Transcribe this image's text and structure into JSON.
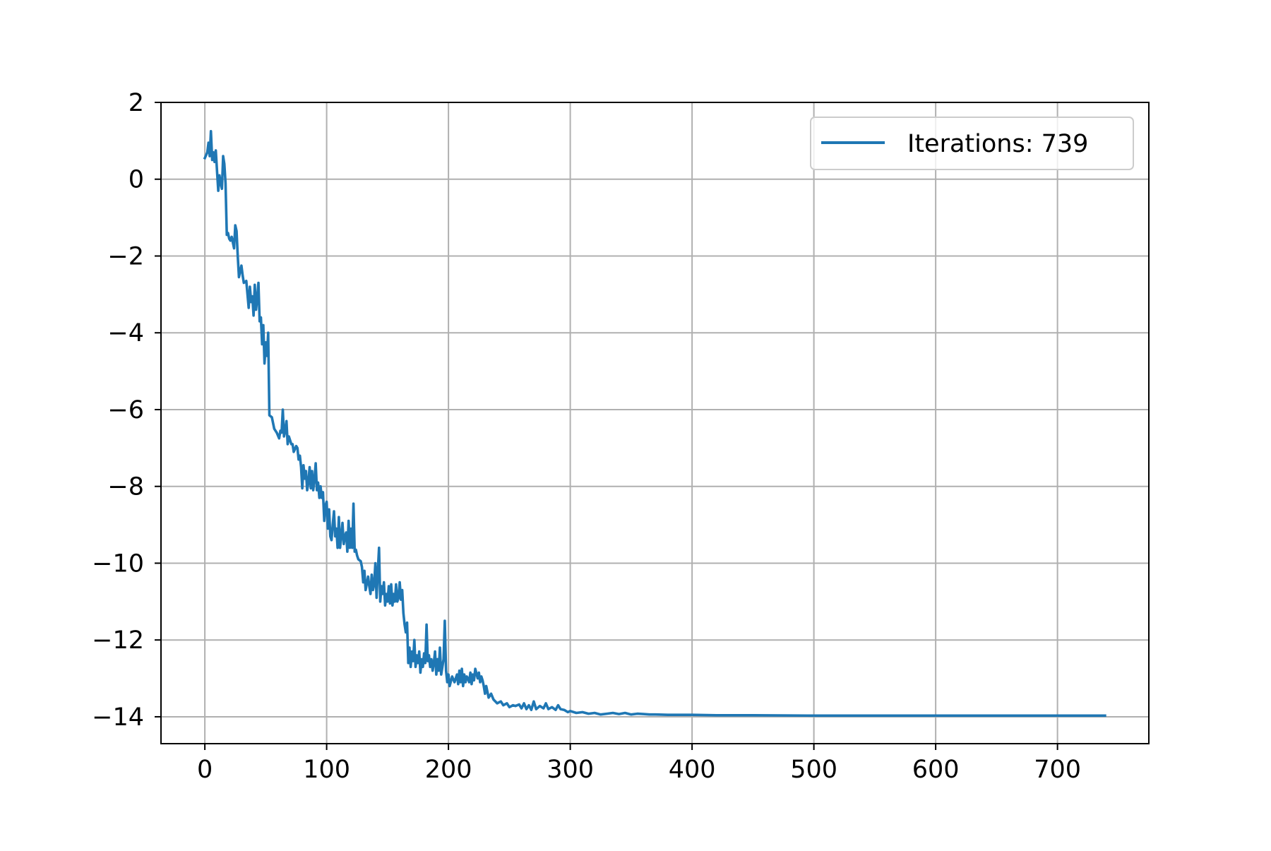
{
  "chart_data": {
    "type": "line",
    "title": "",
    "xlabel": "",
    "ylabel": "",
    "xlim": [
      -36,
      775
    ],
    "ylim": [
      -14.7,
      2.0
    ],
    "x_ticks": [
      0,
      100,
      200,
      300,
      400,
      500,
      600,
      700
    ],
    "y_ticks": [
      2,
      0,
      -2,
      -4,
      -6,
      -8,
      -10,
      -12,
      -14
    ],
    "x_tick_labels": [
      "0",
      "100",
      "200",
      "300",
      "400",
      "500",
      "600",
      "700"
    ],
    "y_tick_labels": [
      "2",
      "0",
      "−2",
      "−4",
      "−6",
      "−8",
      "−10",
      "−12",
      "−14"
    ],
    "grid": true,
    "legend_position": "top-right",
    "series": [
      {
        "name": "Iterations: 739",
        "color": "#1f77b4",
        "points": [
          [
            0,
            0.55
          ],
          [
            2,
            0.7
          ],
          [
            3,
            0.95
          ],
          [
            4,
            0.6
          ],
          [
            5,
            1.25
          ],
          [
            6,
            0.5
          ],
          [
            7,
            0.7
          ],
          [
            8,
            0.45
          ],
          [
            9,
            0.75
          ],
          [
            10,
            0.2
          ],
          [
            11,
            -0.3
          ],
          [
            12,
            0.1
          ],
          [
            13,
            -0.1
          ],
          [
            14,
            -0.25
          ],
          [
            15,
            0.6
          ],
          [
            16,
            0.4
          ],
          [
            17,
            -0.1
          ],
          [
            18,
            -1.45
          ],
          [
            19,
            -1.4
          ],
          [
            20,
            -1.55
          ],
          [
            21,
            -1.6
          ],
          [
            22,
            -1.5
          ],
          [
            24,
            -1.8
          ],
          [
            25,
            -1.2
          ],
          [
            26,
            -1.35
          ],
          [
            27,
            -2.0
          ],
          [
            28,
            -2.55
          ],
          [
            30,
            -2.25
          ],
          [
            31,
            -2.5
          ],
          [
            32,
            -2.7
          ],
          [
            34,
            -2.65
          ],
          [
            35,
            -3.0
          ],
          [
            36,
            -3.35
          ],
          [
            37,
            -2.8
          ],
          [
            38,
            -3.2
          ],
          [
            39,
            -3.05
          ],
          [
            40,
            -3.55
          ],
          [
            41,
            -2.75
          ],
          [
            42,
            -3.4
          ],
          [
            43,
            -3.1
          ],
          [
            44,
            -2.7
          ],
          [
            45,
            -3.7
          ],
          [
            46,
            -3.6
          ],
          [
            47,
            -4.3
          ],
          [
            48,
            -3.8
          ],
          [
            49,
            -4.8
          ],
          [
            50,
            -4.25
          ],
          [
            51,
            -4.6
          ],
          [
            52,
            -4.0
          ],
          [
            53,
            -6.15
          ],
          [
            55,
            -6.2
          ],
          [
            57,
            -6.5
          ],
          [
            59,
            -6.6
          ],
          [
            61,
            -6.75
          ],
          [
            62,
            -6.55
          ],
          [
            63,
            -6.6
          ],
          [
            64,
            -6.0
          ],
          [
            65,
            -6.7
          ],
          [
            66,
            -6.55
          ],
          [
            67,
            -6.3
          ],
          [
            68,
            -6.9
          ],
          [
            69,
            -6.7
          ],
          [
            71,
            -6.9
          ],
          [
            72,
            -6.9
          ],
          [
            73,
            -7.1
          ],
          [
            75,
            -6.95
          ],
          [
            76,
            -7.0
          ],
          [
            77,
            -7.3
          ],
          [
            78,
            -7.2
          ],
          [
            79,
            -7.5
          ],
          [
            80,
            -8.05
          ],
          [
            81,
            -7.45
          ],
          [
            82,
            -7.8
          ],
          [
            83,
            -7.6
          ],
          [
            84,
            -8.1
          ],
          [
            85,
            -7.9
          ],
          [
            86,
            -7.5
          ],
          [
            87,
            -8.05
          ],
          [
            88,
            -7.6
          ],
          [
            89,
            -8.1
          ],
          [
            90,
            -7.8
          ],
          [
            91,
            -7.4
          ],
          [
            92,
            -8.1
          ],
          [
            93,
            -7.9
          ],
          [
            94,
            -8.3
          ],
          [
            95,
            -8.0
          ],
          [
            96,
            -8.3
          ],
          [
            97,
            -8.15
          ],
          [
            98,
            -8.9
          ],
          [
            99,
            -8.5
          ],
          [
            100,
            -8.4
          ],
          [
            101,
            -9.1
          ],
          [
            102,
            -8.6
          ],
          [
            103,
            -9.3
          ],
          [
            104,
            -9.4
          ],
          [
            105,
            -9.0
          ],
          [
            106,
            -8.65
          ],
          [
            107,
            -9.3
          ],
          [
            108,
            -9.1
          ],
          [
            109,
            -9.6
          ],
          [
            110,
            -8.8
          ],
          [
            111,
            -9.6
          ],
          [
            112,
            -9.3
          ],
          [
            113,
            -8.95
          ],
          [
            114,
            -9.5
          ],
          [
            115,
            -9.3
          ],
          [
            116,
            -9.2
          ],
          [
            117,
            -9.7
          ],
          [
            118,
            -8.9
          ],
          [
            119,
            -9.6
          ],
          [
            120,
            -9.1
          ],
          [
            121,
            -9.6
          ],
          [
            122,
            -8.45
          ],
          [
            123,
            -9.7
          ],
          [
            124,
            -9.65
          ],
          [
            125,
            -9.8
          ],
          [
            126,
            -9.9
          ],
          [
            128,
            -9.95
          ],
          [
            129,
            -10.1
          ],
          [
            130,
            -10.5
          ],
          [
            131,
            -10.2
          ],
          [
            132,
            -10.7
          ],
          [
            134,
            -10.35
          ],
          [
            135,
            -10.6
          ],
          [
            136,
            -10.8
          ],
          [
            137,
            -10.3
          ],
          [
            138,
            -10.7
          ],
          [
            139,
            -10.55
          ],
          [
            140,
            -10.0
          ],
          [
            141,
            -10.9
          ],
          [
            142,
            -10.2
          ],
          [
            143,
            -9.6
          ],
          [
            144,
            -11.0
          ],
          [
            145,
            -10.6
          ],
          [
            146,
            -10.8
          ],
          [
            147,
            -10.5
          ],
          [
            148,
            -11.1
          ],
          [
            149,
            -10.8
          ],
          [
            150,
            -11.0
          ],
          [
            151,
            -10.6
          ],
          [
            152,
            -11.05
          ],
          [
            153,
            -10.55
          ],
          [
            154,
            -11.1
          ],
          [
            155,
            -10.8
          ],
          [
            156,
            -11.0
          ],
          [
            157,
            -10.55
          ],
          [
            158,
            -11.0
          ],
          [
            159,
            -10.9
          ],
          [
            160,
            -10.5
          ],
          [
            161,
            -10.95
          ],
          [
            162,
            -10.7
          ],
          [
            163,
            -11.3
          ],
          [
            164,
            -11.6
          ],
          [
            165,
            -11.8
          ],
          [
            166,
            -11.55
          ],
          [
            167,
            -12.6
          ],
          [
            168,
            -12.2
          ],
          [
            169,
            -12.7
          ],
          [
            170,
            -12.3
          ],
          [
            171,
            -12.55
          ],
          [
            172,
            -12.0
          ],
          [
            173,
            -12.7
          ],
          [
            174,
            -12.4
          ],
          [
            175,
            -12.6
          ],
          [
            176,
            -12.3
          ],
          [
            177,
            -12.85
          ],
          [
            178,
            -12.5
          ],
          [
            179,
            -12.7
          ],
          [
            180,
            -12.35
          ],
          [
            181,
            -12.6
          ],
          [
            182,
            -11.6
          ],
          [
            183,
            -12.55
          ],
          [
            184,
            -12.4
          ],
          [
            185,
            -12.7
          ],
          [
            186,
            -12.5
          ],
          [
            187,
            -12.8
          ],
          [
            188,
            -12.6
          ],
          [
            189,
            -12.3
          ],
          [
            190,
            -12.9
          ],
          [
            191,
            -12.5
          ],
          [
            192,
            -12.8
          ],
          [
            193,
            -12.2
          ],
          [
            194,
            -12.9
          ],
          [
            195,
            -12.7
          ],
          [
            196,
            -12.5
          ],
          [
            197,
            -11.5
          ],
          [
            198,
            -12.8
          ],
          [
            199,
            -13.1
          ],
          [
            200,
            -12.9
          ],
          [
            201,
            -13.2
          ],
          [
            203,
            -12.95
          ],
          [
            205,
            -13.1
          ],
          [
            207,
            -12.9
          ],
          [
            208,
            -13.15
          ],
          [
            209,
            -12.8
          ],
          [
            210,
            -13.1
          ],
          [
            211,
            -12.75
          ],
          [
            212,
            -13.2
          ],
          [
            213,
            -12.9
          ],
          [
            214,
            -13.1
          ],
          [
            215,
            -12.95
          ],
          [
            216,
            -13.0
          ],
          [
            217,
            -13.1
          ],
          [
            218,
            -12.85
          ],
          [
            219,
            -13.15
          ],
          [
            220,
            -12.9
          ],
          [
            221,
            -13.05
          ],
          [
            222,
            -12.75
          ],
          [
            224,
            -13.0
          ],
          [
            225,
            -12.85
          ],
          [
            226,
            -13.1
          ],
          [
            227,
            -12.95
          ],
          [
            228,
            -13.05
          ],
          [
            229,
            -13.2
          ],
          [
            230,
            -13.4
          ],
          [
            231,
            -13.2
          ],
          [
            232,
            -13.35
          ],
          [
            233,
            -13.5
          ],
          [
            235,
            -13.4
          ],
          [
            237,
            -13.55
          ],
          [
            240,
            -13.65
          ],
          [
            243,
            -13.6
          ],
          [
            245,
            -13.7
          ],
          [
            248,
            -13.65
          ],
          [
            250,
            -13.75
          ],
          [
            253,
            -13.7
          ],
          [
            255,
            -13.72
          ],
          [
            258,
            -13.68
          ],
          [
            260,
            -13.78
          ],
          [
            262,
            -13.65
          ],
          [
            264,
            -13.8
          ],
          [
            266,
            -13.7
          ],
          [
            268,
            -13.82
          ],
          [
            270,
            -13.6
          ],
          [
            272,
            -13.8
          ],
          [
            275,
            -13.72
          ],
          [
            278,
            -13.78
          ],
          [
            280,
            -13.65
          ],
          [
            282,
            -13.8
          ],
          [
            285,
            -13.75
          ],
          [
            288,
            -13.82
          ],
          [
            290,
            -13.7
          ],
          [
            292,
            -13.8
          ],
          [
            295,
            -13.82
          ],
          [
            298,
            -13.88
          ],
          [
            300,
            -13.85
          ],
          [
            305,
            -13.9
          ],
          [
            310,
            -13.88
          ],
          [
            315,
            -13.92
          ],
          [
            320,
            -13.9
          ],
          [
            325,
            -13.94
          ],
          [
            330,
            -13.92
          ],
          [
            335,
            -13.9
          ],
          [
            340,
            -13.93
          ],
          [
            345,
            -13.9
          ],
          [
            350,
            -13.94
          ],
          [
            355,
            -13.92
          ],
          [
            360,
            -13.93
          ],
          [
            365,
            -13.94
          ],
          [
            370,
            -13.94
          ],
          [
            380,
            -13.95
          ],
          [
            400,
            -13.95
          ],
          [
            420,
            -13.96
          ],
          [
            450,
            -13.96
          ],
          [
            500,
            -13.97
          ],
          [
            550,
            -13.97
          ],
          [
            600,
            -13.97
          ],
          [
            650,
            -13.97
          ],
          [
            700,
            -13.97
          ],
          [
            739,
            -13.97
          ]
        ]
      }
    ]
  }
}
